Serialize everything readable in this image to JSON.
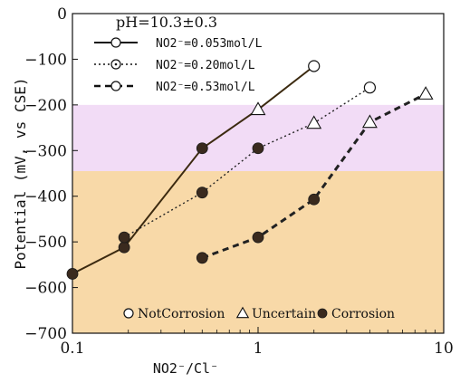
{
  "chart_data": {
    "type": "line",
    "annotation": "pH=10.3±0.3",
    "xlabel": "NO2⁻/Cl⁻",
    "ylabel": "Potential (mV, vs CSE)",
    "xscale": "log",
    "xlim": [
      0.1,
      10
    ],
    "ylim": [
      -700,
      0
    ],
    "x_ticks": [
      {
        "value": 0.1,
        "label": "0.1"
      },
      {
        "value": 1,
        "label": "1"
      },
      {
        "value": 10,
        "label": "10"
      }
    ],
    "y_ticks": [
      {
        "value": 0,
        "label": "0"
      },
      {
        "value": -100,
        "label": "-100"
      },
      {
        "value": -200,
        "label": "-200"
      },
      {
        "value": -300,
        "label": "-300"
      },
      {
        "value": -400,
        "label": "-400"
      },
      {
        "value": -500,
        "label": "-500"
      },
      {
        "value": -600,
        "label": "-600"
      },
      {
        "value": -700,
        "label": "-700"
      }
    ],
    "bands": [
      {
        "from": -200,
        "to": -345,
        "color": "#f2dcf6"
      },
      {
        "from": -345,
        "to": -700,
        "color": "#f8d9a8"
      }
    ],
    "series": [
      {
        "name": "NO2⁻=0.053mol/L",
        "line_style": "solid",
        "points": [
          {
            "x": 0.1,
            "y": -570,
            "marker": "filled-circle"
          },
          {
            "x": 0.19,
            "y": -512,
            "marker": "filled-circle"
          },
          {
            "x": 0.5,
            "y": -295,
            "marker": "filled-circle"
          },
          {
            "x": 1,
            "y": -210,
            "marker": "triangle"
          },
          {
            "x": 2,
            "y": -115,
            "marker": "open-circle"
          }
        ]
      },
      {
        "name": "NO2⁻=0.20mol/L",
        "line_style": "dotted",
        "points": [
          {
            "x": 0.19,
            "y": -490,
            "marker": "filled-circle"
          },
          {
            "x": 0.5,
            "y": -392,
            "marker": "filled-circle"
          },
          {
            "x": 1,
            "y": -295,
            "marker": "filled-circle"
          },
          {
            "x": 2,
            "y": -240,
            "marker": "triangle"
          },
          {
            "x": 4,
            "y": -162,
            "marker": "open-circle"
          }
        ]
      },
      {
        "name": "NO2⁻=0.53mol/L",
        "line_style": "dashed",
        "points": [
          {
            "x": 0.5,
            "y": -535,
            "marker": "filled-circle"
          },
          {
            "x": 1,
            "y": -490,
            "marker": "filled-circle"
          },
          {
            "x": 2,
            "y": -407,
            "marker": "filled-circle"
          },
          {
            "x": 4,
            "y": -238,
            "marker": "triangle"
          },
          {
            "x": 8,
            "y": -176,
            "marker": "triangle"
          }
        ]
      }
    ],
    "marker_legend": [
      {
        "marker": "open-circle",
        "label": "NotCorrosion"
      },
      {
        "marker": "triangle",
        "label": "Uncertain"
      },
      {
        "marker": "filled-circle",
        "label": "Corrosion"
      }
    ]
  }
}
